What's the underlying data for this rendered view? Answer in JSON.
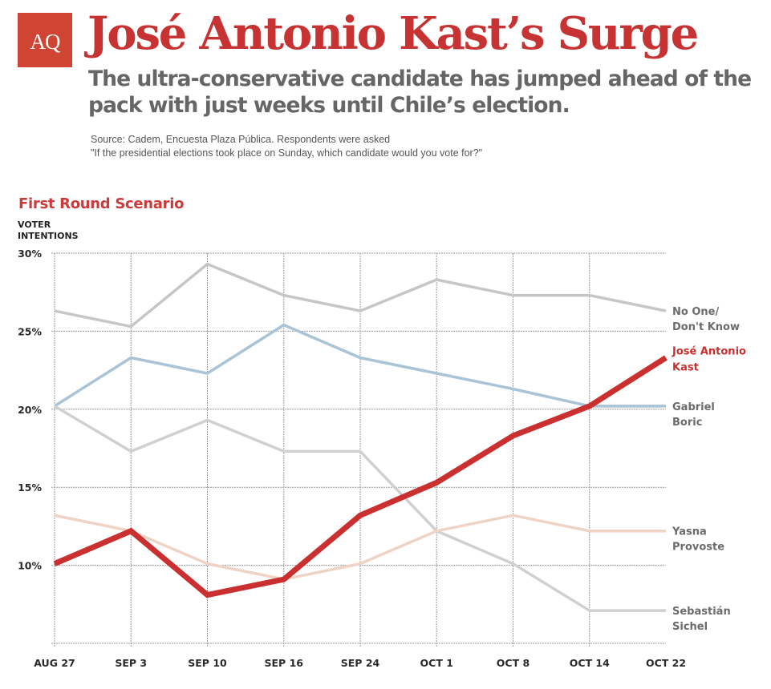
{
  "header": {
    "logo_text": "AQ",
    "title": "José Antonio Kast’s Surge",
    "subtitle": "The ultra-conservative candidate has jumped ahead of the pack with just weeks until Chile’s election.",
    "source_line1": "Source: Cadem, Encuesta Plaza Pública. Respondents were asked",
    "source_line2": "\"If the presidential elections took place on Sunday, which candidate would you vote for?\""
  },
  "colors": {
    "brand_red": "#c73232",
    "logo_bg": "#cf4433",
    "subtitle_gray": "#666669"
  },
  "chart_data": {
    "type": "line",
    "title": "First Round Scenario",
    "ylabel_lines": [
      "VOTER",
      "INTENTIONS"
    ],
    "xlabel": "",
    "categories": [
      "AUG 27",
      "SEP 3",
      "SEP 10",
      "SEP 16",
      "SEP 24",
      "OCT 1",
      "OCT 8",
      "OCT 14",
      "OCT 22"
    ],
    "ylim": [
      5,
      30
    ],
    "yticks": [
      10,
      15,
      20,
      25,
      30
    ],
    "ytick_labels": [
      "10%",
      "15%",
      "20%",
      "25%",
      "30%"
    ],
    "grid": true,
    "legend": "inline-right",
    "series": [
      {
        "name": "No One/ Don't Know",
        "label_lines": [
          "No One/",
          "Don't Know"
        ],
        "color": "#c6c6c6",
        "label_color": "#6b6b6e",
        "emphasis": false,
        "values": [
          26.3,
          25.3,
          29.3,
          27.3,
          26.3,
          28.3,
          27.3,
          27.3,
          26.3
        ]
      },
      {
        "name": "Gabriel Boric",
        "label_lines": [
          "Gabriel",
          "Boric"
        ],
        "color": "#a9c4d6",
        "label_color": "#6b6b6e",
        "emphasis": false,
        "values": [
          20.2,
          23.3,
          22.3,
          25.4,
          23.3,
          22.3,
          21.3,
          20.2,
          20.2
        ]
      },
      {
        "name": "Sebastián Sichel",
        "label_lines": [
          "Sebastián",
          "Sichel"
        ],
        "color": "#d0d0d0",
        "label_color": "#6b6b6e",
        "emphasis": false,
        "values": [
          20.2,
          17.3,
          19.3,
          17.3,
          17.3,
          12.2,
          10.1,
          7.1,
          7.1
        ]
      },
      {
        "name": "Yasna Provoste",
        "label_lines": [
          "Yasna",
          "Provoste"
        ],
        "color": "#efd3c4",
        "label_color": "#6b6b6e",
        "emphasis": false,
        "values": [
          13.2,
          12.2,
          10.1,
          9.1,
          10.1,
          12.2,
          13.2,
          12.2,
          12.2
        ]
      },
      {
        "name": "José Antonio Kast",
        "label_lines": [
          "José Antonio",
          "Kast"
        ],
        "color": "#c9302f",
        "label_color": "#c9302f",
        "emphasis": true,
        "values": [
          10.1,
          12.2,
          8.1,
          9.1,
          13.2,
          15.3,
          18.3,
          20.2,
          23.3
        ]
      }
    ]
  }
}
